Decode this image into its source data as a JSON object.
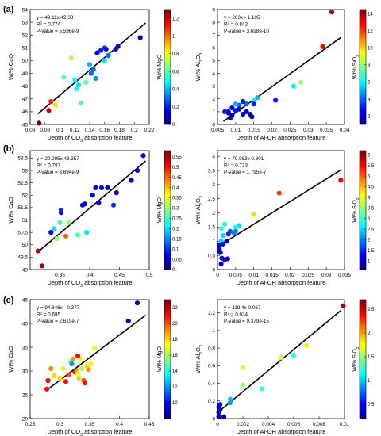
{
  "panel_letters": [
    "(a)",
    "(b)",
    "(c)"
  ],
  "colorbar_stops": [
    "#00008f",
    "#0000ff",
    "#0080ff",
    "#00ffff",
    "#80ff80",
    "#ffff00",
    "#ff8000",
    "#ff0000",
    "#800000"
  ],
  "chart_data": [
    {
      "type": "scatter",
      "xlabel": "Depth of CO3 absorption feature",
      "ylabel": "Wt% CaO",
      "xlim": [
        0.06,
        0.22
      ],
      "ylim": [
        45,
        54
      ],
      "xticks": [
        "0.06",
        "0.08",
        "0.1",
        "0.12",
        "0.14",
        "0.16",
        "0.18",
        "0.2",
        "0.22"
      ],
      "yticks": [
        "45",
        "46",
        "47",
        "48",
        "49",
        "50",
        "51",
        "52",
        "53",
        "54"
      ],
      "fit": {
        "slope": 49.11,
        "intercept": 42.38
      },
      "annotation": [
        "y = 49.11x + 42.38",
        "R2 = 0.774",
        "P-value = 5.596e-9"
      ],
      "colorbar": {
        "label": "Wt% MgO",
        "range": [
          0,
          1.3
        ],
        "ticks": [
          "0",
          "0.2",
          "0.4",
          "0.6",
          "0.8",
          "1",
          "1.2"
        ]
      },
      "points": [
        [
          0.072,
          45.1,
          1.3
        ],
        [
          0.088,
          46.8,
          1.1
        ],
        [
          0.094,
          46.5,
          0.85
        ],
        [
          0.105,
          48.7,
          0.6
        ],
        [
          0.115,
          50.2,
          0.7
        ],
        [
          0.12,
          48.5,
          0.5
        ],
        [
          0.122,
          47.8,
          0.5
        ],
        [
          0.125,
          48.1,
          0.45
        ],
        [
          0.128,
          46.7,
          0.6
        ],
        [
          0.135,
          48.3,
          0.6
        ],
        [
          0.14,
          49.7,
          0.4
        ],
        [
          0.142,
          49.0,
          0.3
        ],
        [
          0.145,
          49.3,
          0.3
        ],
        [
          0.148,
          48.6,
          0.35
        ],
        [
          0.15,
          50.6,
          0.15
        ],
        [
          0.155,
          50.8,
          0.2
        ],
        [
          0.16,
          50.0,
          0.45
        ],
        [
          0.16,
          51.0,
          0.25
        ],
        [
          0.162,
          50.9,
          0.15
        ],
        [
          0.175,
          50.9,
          0.1
        ],
        [
          0.178,
          51.1,
          0.1
        ],
        [
          0.208,
          51.8,
          0.05
        ],
        [
          0.085,
          46.1,
          1.2
        ],
        [
          0.165,
          50.4,
          0.3
        ]
      ]
    },
    {
      "type": "scatter",
      "xlabel": "Depth of Al-OH absorption feature",
      "ylabel": "Wt% Al2O3",
      "xlim": [
        0.005,
        0.04
      ],
      "ylim": [
        0,
        9
      ],
      "xticks": [
        "0.005",
        "0.01",
        "0.015",
        "0.02",
        "0.025",
        "0.03",
        "0.035",
        "0.04"
      ],
      "yticks": [
        "0",
        "1",
        "2",
        "3",
        "4",
        "5",
        "6",
        "7",
        "8",
        "9"
      ],
      "fit": {
        "slope": 203,
        "intercept": -1.105
      },
      "annotation": [
        "y = 203x - 1.105",
        "R2 = 0.842",
        "P-value = 3.698e-10"
      ],
      "colorbar": {
        "label": "Wt% SiO2",
        "range": [
          1,
          14.5
        ],
        "ticks": [
          "2",
          "4",
          "6",
          "8",
          "10",
          "12",
          "14"
        ]
      },
      "points": [
        [
          0.0365,
          8.8,
          14
        ],
        [
          0.034,
          6.1,
          13
        ],
        [
          0.028,
          3.3,
          8
        ],
        [
          0.026,
          3.0,
          6
        ],
        [
          0.021,
          1.9,
          3
        ],
        [
          0.016,
          2.1,
          5
        ],
        [
          0.015,
          1.9,
          6
        ],
        [
          0.015,
          1.6,
          3
        ],
        [
          0.013,
          1.6,
          4
        ],
        [
          0.012,
          1.8,
          3
        ],
        [
          0.011,
          1.5,
          4
        ],
        [
          0.01,
          1.6,
          5
        ],
        [
          0.011,
          1.2,
          2
        ],
        [
          0.01,
          1.1,
          3
        ],
        [
          0.009,
          1.3,
          2
        ],
        [
          0.008,
          0.9,
          1.5
        ],
        [
          0.008,
          1.0,
          2
        ],
        [
          0.0085,
          0.5,
          1.5
        ],
        [
          0.009,
          0.7,
          1.5
        ],
        [
          0.013,
          1.0,
          2
        ],
        [
          0.014,
          0.8,
          1.5
        ],
        [
          0.0145,
          0.6,
          1.5
        ],
        [
          0.012,
          0.8,
          2
        ],
        [
          0.007,
          1.0,
          3
        ]
      ]
    },
    {
      "type": "scatter",
      "xlabel": "Depth of CO3 absorption feature",
      "ylabel": "Wt% CaO",
      "xlim": [
        0.3,
        0.5
      ],
      "ylim": [
        49,
        53.8
      ],
      "xticks": [
        "0.35",
        "0.4",
        "0.45",
        "0.5"
      ],
      "yticks": [
        "49",
        "49.5",
        "50",
        "50.5",
        "51",
        "51.5",
        "52",
        "52.5",
        "53",
        "53.5"
      ],
      "fit": {
        "slope": 20.295,
        "intercept": 43.357
      },
      "annotation": [
        "y = 20.295x + 43.357",
        "R2 = 0.787",
        "P-value = 3.694e-9"
      ],
      "colorbar": {
        "label": "Wt% MgO",
        "range": [
          0,
          0.58
        ],
        "ticks": [
          "0",
          "0.05",
          "0.1",
          "0.15",
          "0.2",
          "0.25",
          "0.3",
          "0.35",
          "0.4",
          "0.45",
          "0.5",
          "0.55"
        ]
      },
      "points": [
        [
          0.313,
          49.75,
          0.55
        ],
        [
          0.32,
          49.15,
          0.55
        ],
        [
          0.335,
          50.5,
          0.05
        ],
        [
          0.34,
          50.65,
          0.2
        ],
        [
          0.345,
          50.25,
          0.3
        ],
        [
          0.35,
          50.9,
          0.25
        ],
        [
          0.352,
          51.3,
          0.05
        ],
        [
          0.352,
          51.4,
          0.1
        ],
        [
          0.36,
          50.35,
          0.45
        ],
        [
          0.365,
          50.9,
          0.3
        ],
        [
          0.38,
          50.4,
          0.25
        ],
        [
          0.388,
          51.6,
          0.05
        ],
        [
          0.392,
          51.65,
          0.05
        ],
        [
          0.395,
          50.5,
          0.2
        ],
        [
          0.405,
          52.0,
          0.05
        ],
        [
          0.41,
          52.3,
          0.05
        ],
        [
          0.415,
          51.7,
          0.05
        ],
        [
          0.42,
          52.3,
          0.05
        ],
        [
          0.43,
          52.3,
          0.05
        ],
        [
          0.44,
          51.6,
          0.1
        ],
        [
          0.445,
          52.1,
          0.05
        ],
        [
          0.48,
          53.0,
          0.05
        ],
        [
          0.49,
          53.6,
          0.05
        ],
        [
          0.47,
          52.6,
          0.05
        ]
      ]
    },
    {
      "type": "scatter",
      "xlabel": "Depth of Al-OH absorption feature",
      "ylabel": "Wt% Al2O3",
      "xlim": [
        0,
        0.035
      ],
      "ylim": [
        0,
        4.2
      ],
      "xticks": [
        "0",
        "0.005",
        "0.01",
        "0.015",
        "0.02",
        "0.025",
        "0.03",
        "0.035"
      ],
      "yticks": [
        "0",
        "0.5",
        "1",
        "1.5",
        "2",
        "2.5",
        "3",
        "3.5",
        "4"
      ],
      "fit": {
        "slope": 79.983,
        "intercept": 0.801
      },
      "annotation": [
        "y = 79.983x + 0.801",
        "R2 = 0.723",
        "P-value = 1.795e-7"
      ],
      "colorbar": {
        "label": "Wt% SiO2",
        "range": [
          0.6,
          6.2
        ],
        "ticks": [
          "1",
          "1.5",
          "2",
          "2.5",
          "3",
          "3.5",
          "4",
          "4.5",
          "5",
          "5.5",
          "6"
        ]
      },
      "points": [
        [
          0.034,
          3.15,
          5.5
        ],
        [
          0.017,
          2.7,
          5.2
        ],
        [
          0.01,
          1.95,
          4.3
        ],
        [
          0.006,
          1.55,
          2.5
        ],
        [
          0.005,
          1.5,
          2.8
        ],
        [
          0.0045,
          1.3,
          2.0
        ],
        [
          0.0035,
          1.35,
          1.8
        ],
        [
          0.005,
          1.35,
          2.0
        ],
        [
          0.002,
          1.6,
          2.8
        ],
        [
          0.001,
          1.45,
          3.0
        ],
        [
          0.0015,
          1.2,
          2.5
        ],
        [
          0.001,
          1.0,
          2.5
        ],
        [
          0.0005,
          0.85,
          1.2
        ],
        [
          0.0008,
          0.6,
          1.0
        ],
        [
          0.0012,
          0.4,
          1.0
        ],
        [
          0.002,
          0.35,
          1.0
        ],
        [
          0.0028,
          0.38,
          1.0
        ],
        [
          0.001,
          0.2,
          1.0
        ],
        [
          0.0005,
          0.7,
          1.0
        ],
        [
          0.0025,
          1.0,
          1.0
        ],
        [
          0.003,
          1.25,
          1.5
        ],
        [
          0.0015,
          0.9,
          1.2
        ]
      ]
    },
    {
      "type": "scatter",
      "xlabel": "Depth of CO3 absorption feature",
      "ylabel": "Wt% CaO",
      "xlim": [
        0.25,
        0.45
      ],
      "ylim": [
        20,
        45
      ],
      "xticks": [
        "0.25",
        "0.3",
        "0.35",
        "0.4",
        "0.45"
      ],
      "yticks": [
        "20",
        "25",
        "30",
        "35",
        "40",
        "45"
      ],
      "fit": {
        "slope": 94.846,
        "intercept": -0.377
      },
      "annotation": [
        "y = 94.846x - 0.377",
        "R2 = 0.695",
        "P-value = 2.619e-7"
      ],
      "colorbar": {
        "label": "Wt% MgO",
        "range": [
          8,
          23
        ],
        "ticks": [
          "10",
          "12",
          "14",
          "16",
          "18",
          "20",
          "22"
        ]
      },
      "points": [
        [
          0.278,
          26.2,
          21
        ],
        [
          0.28,
          28.0,
          21
        ],
        [
          0.285,
          30.5,
          19
        ],
        [
          0.29,
          29.0,
          18
        ],
        [
          0.3,
          28.5,
          18
        ],
        [
          0.305,
          30.5,
          17
        ],
        [
          0.31,
          27.8,
          21
        ],
        [
          0.315,
          29.2,
          20
        ],
        [
          0.318,
          32.0,
          15
        ],
        [
          0.32,
          31.5,
          12
        ],
        [
          0.322,
          32.5,
          19
        ],
        [
          0.325,
          29.8,
          21
        ],
        [
          0.328,
          30.0,
          19
        ],
        [
          0.33,
          29.5,
          17
        ],
        [
          0.332,
          28.5,
          18
        ],
        [
          0.335,
          32.5,
          17
        ],
        [
          0.337,
          30.5,
          16
        ],
        [
          0.34,
          28.0,
          20
        ],
        [
          0.342,
          27.5,
          21
        ],
        [
          0.345,
          31.0,
          18
        ],
        [
          0.348,
          30.3,
          19
        ],
        [
          0.352,
          31.5,
          17
        ],
        [
          0.358,
          34.8,
          17
        ],
        [
          0.415,
          40.5,
          9
        ],
        [
          0.43,
          44.3,
          8.5
        ],
        [
          0.33,
          33.2,
          21
        ]
      ]
    },
    {
      "type": "scatter",
      "xlabel": "Depth of Al-OH absorption feature",
      "ylabel": "Wt% Al2O3",
      "xlim": [
        0,
        0.01
      ],
      "ylim": [
        0,
        1.35
      ],
      "xticks": [
        "0",
        "0.002",
        "0.004",
        "0.006",
        "0.008",
        "0.01"
      ],
      "yticks": [
        "0",
        "0.2",
        "0.4",
        "0.6",
        "0.8",
        "1",
        "1.2"
      ],
      "fit": {
        "slope": 119.4,
        "intercept": 0.067
      },
      "annotation": [
        "y = 119.4x + 0.067",
        "R2 = 0.934",
        "P-value = 9.379e-15"
      ],
      "colorbar": {
        "label": "Wt% SiO2",
        "range": [
          0.2,
          2.7
        ],
        "ticks": [
          "0.5",
          "1",
          "1.5",
          "2",
          "2.5"
        ]
      },
      "points": [
        [
          0.0099,
          1.28,
          2.6
        ],
        [
          0.007,
          0.83,
          1.8
        ],
        [
          0.006,
          0.72,
          1.2
        ],
        [
          0.005,
          0.69,
          1.6
        ],
        [
          0.002,
          0.58,
          1.7
        ],
        [
          0.0035,
          0.34,
          1.3
        ],
        [
          0.002,
          0.38,
          1.5
        ],
        [
          0.001,
          0.22,
          1.0
        ],
        [
          0.001,
          0.18,
          0.9
        ],
        [
          0.0005,
          0.02,
          0.3
        ],
        [
          0.0001,
          0.02,
          0.3
        ],
        [
          0.0002,
          0.16,
          0.5
        ],
        [
          0.0001,
          0.13,
          0.4
        ],
        [
          0.0002,
          0.1,
          0.3
        ],
        [
          0.0001,
          0.07,
          0.35
        ]
      ]
    }
  ]
}
